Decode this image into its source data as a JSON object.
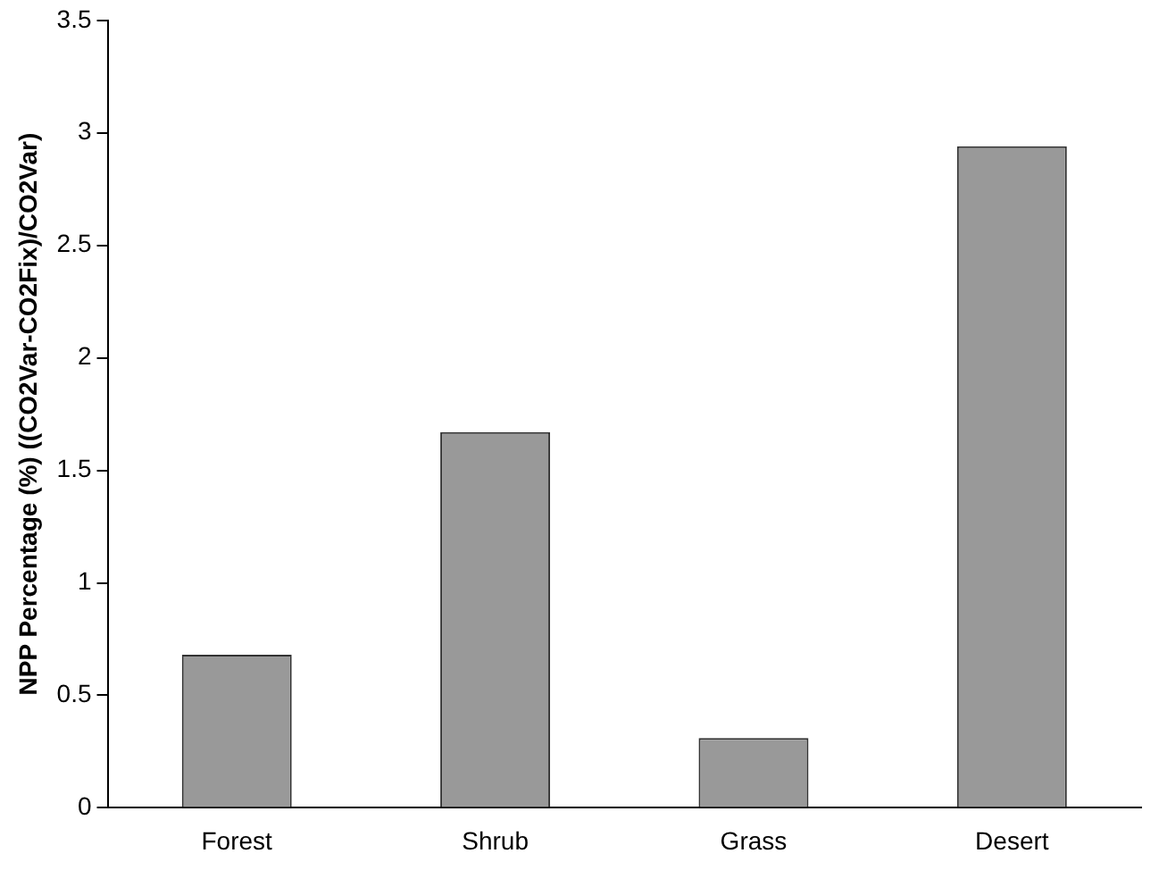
{
  "chart_data": {
    "type": "bar",
    "ylabel": "NPP Percentage (%) ((CO2Var-CO2Fix)/CO2Var)",
    "categories": [
      "Forest",
      "Shrub",
      "Grass",
      "Desert"
    ],
    "values": [
      0.68,
      1.67,
      0.31,
      2.94
    ],
    "color": "#999999",
    "ylim": [
      0,
      3.5
    ],
    "yticks": [
      0,
      0.5,
      1,
      1.5,
      2,
      2.5,
      3,
      3.5
    ],
    "grid": false,
    "legend": false
  }
}
